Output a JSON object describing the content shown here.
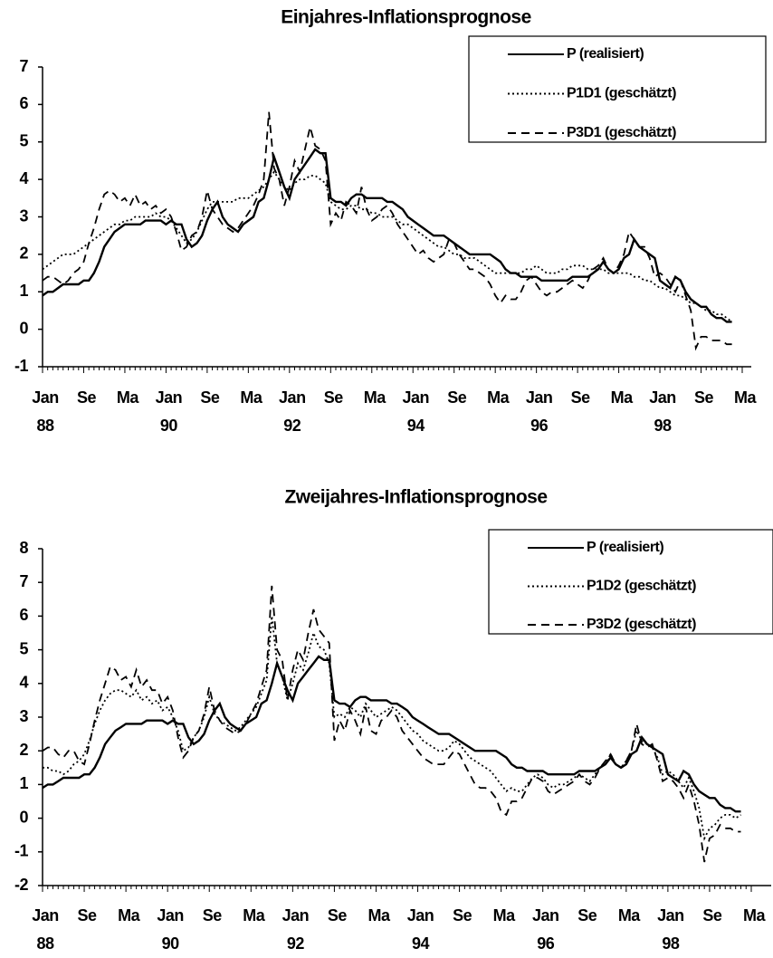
{
  "chart_data": [
    {
      "type": "line",
      "title": "Einjahres-Inflationsprognose",
      "categories": [
        "Jan 88",
        null,
        null,
        null,
        null,
        null,
        null,
        null,
        "Se",
        null,
        null,
        null,
        null,
        null,
        null,
        null,
        "Ma",
        null,
        null,
        null,
        null,
        null,
        null,
        null,
        "Jan 90",
        null,
        null,
        null,
        null,
        null,
        null,
        null,
        "Se",
        null,
        null,
        null,
        null,
        null,
        null,
        null,
        "Ma",
        null,
        null,
        null,
        null,
        null,
        null,
        null,
        "Jan 92",
        null,
        null,
        null,
        null,
        null,
        null,
        null,
        "Se",
        null,
        null,
        null,
        null,
        null,
        null,
        null,
        "Ma",
        null,
        null,
        null,
        null,
        null,
        null,
        null,
        "Jan 94",
        null,
        null,
        null,
        null,
        null,
        null,
        null,
        "Se",
        null,
        null,
        null,
        null,
        null,
        null,
        null,
        "Ma",
        null,
        null,
        null,
        null,
        null,
        null,
        null,
        "Jan 96",
        null,
        null,
        null,
        null,
        null,
        null,
        null,
        "Se",
        null,
        null,
        null,
        null,
        null,
        null,
        null,
        "Ma",
        null,
        null,
        null,
        null,
        null,
        null,
        null,
        "Jan 98",
        null,
        null,
        null,
        null,
        null,
        null,
        null,
        "Se",
        null,
        null,
        null,
        null,
        null,
        null,
        null,
        "Ma"
      ],
      "ylim": [
        -1,
        7
      ],
      "yticks": [
        -1,
        0,
        1,
        2,
        3,
        4,
        5,
        6,
        7
      ],
      "legend": "top-right",
      "series": [
        {
          "name": "P (realisiert)",
          "color": "#000000",
          "style": "solid",
          "values": [
            0.9,
            1.0,
            1.0,
            1.1,
            1.2,
            1.2,
            1.2,
            1.2,
            1.3,
            1.3,
            1.5,
            1.8,
            2.2,
            2.4,
            2.6,
            2.7,
            2.8,
            2.8,
            2.8,
            2.8,
            2.9,
            2.9,
            2.9,
            2.9,
            2.8,
            2.9,
            2.8,
            2.8,
            2.4,
            2.2,
            2.3,
            2.5,
            2.9,
            3.2,
            3.4,
            3.0,
            2.8,
            2.7,
            2.6,
            2.8,
            2.9,
            3.0,
            3.4,
            3.5,
            4.0,
            4.6,
            4.2,
            3.8,
            3.5,
            4.0,
            4.2,
            4.4,
            4.6,
            4.8,
            4.7,
            4.7,
            3.5,
            3.4,
            3.4,
            3.3,
            3.5,
            3.6,
            3.6,
            3.5,
            3.5,
            3.5,
            3.5,
            3.4,
            3.4,
            3.3,
            3.2,
            3.0,
            2.9,
            2.8,
            2.7,
            2.6,
            2.5,
            2.5,
            2.5,
            2.4,
            2.3,
            2.2,
            2.1,
            2.0,
            2.0,
            2.0,
            2.0,
            2.0,
            1.9,
            1.8,
            1.6,
            1.5,
            1.5,
            1.4,
            1.4,
            1.4,
            1.4,
            1.3,
            1.3,
            1.3,
            1.3,
            1.3,
            1.3,
            1.4,
            1.4,
            1.4,
            1.4,
            1.5,
            1.6,
            1.8,
            1.6,
            1.5,
            1.6,
            1.9,
            2.0,
            2.4,
            2.2,
            2.1,
            2.0,
            1.9,
            1.3,
            1.2,
            1.1,
            1.4,
            1.3,
            1.0,
            0.8,
            0.7,
            0.6,
            0.6,
            0.4,
            0.3,
            0.3,
            0.2,
            0.2,
            null,
            null
          ]
        },
        {
          "name": "P1D1 (geschätzt)",
          "color": "#000000",
          "style": "dotted",
          "values": [
            1.6,
            1.7,
            1.8,
            1.9,
            2.0,
            2.0,
            2.0,
            2.1,
            2.2,
            2.3,
            2.4,
            2.5,
            2.6,
            2.7,
            2.8,
            2.8,
            2.9,
            2.9,
            3.0,
            3.0,
            3.0,
            3.0,
            3.1,
            3.0,
            3.0,
            2.9,
            2.7,
            2.5,
            2.3,
            2.4,
            2.6,
            2.9,
            3.2,
            3.4,
            3.4,
            3.4,
            3.4,
            3.4,
            3.5,
            3.5,
            3.5,
            3.6,
            3.7,
            3.8,
            4.0,
            4.2,
            4.0,
            3.8,
            3.7,
            3.9,
            4.0,
            4.0,
            4.1,
            4.1,
            4.0,
            3.9,
            3.4,
            3.3,
            3.2,
            3.2,
            3.3,
            3.3,
            3.2,
            3.2,
            3.1,
            3.1,
            3.0,
            3.0,
            3.0,
            2.9,
            2.8,
            2.8,
            2.7,
            2.6,
            2.5,
            2.4,
            2.3,
            2.2,
            2.2,
            2.1,
            2.0,
            2.0,
            1.9,
            1.9,
            1.9,
            1.8,
            1.7,
            1.6,
            1.5,
            1.5,
            1.5,
            1.5,
            1.5,
            1.5,
            1.6,
            1.6,
            1.7,
            1.6,
            1.5,
            1.5,
            1.5,
            1.6,
            1.6,
            1.7,
            1.7,
            1.7,
            1.6,
            1.6,
            1.6,
            1.6,
            1.5,
            1.5,
            1.5,
            1.5,
            1.5,
            1.4,
            1.4,
            1.3,
            1.3,
            1.2,
            1.1,
            1.1,
            1.0,
            0.9,
            0.9,
            0.8,
            0.7,
            0.7,
            0.6,
            0.5,
            0.5,
            0.4,
            0.4,
            0.3,
            0.2,
            null,
            null
          ]
        },
        {
          "name": "P3D1 (geschätzt)",
          "color": "#000000",
          "style": "dashed",
          "values": [
            1.3,
            1.4,
            1.4,
            1.3,
            1.2,
            1.3,
            1.5,
            1.6,
            1.8,
            2.3,
            2.7,
            3.2,
            3.6,
            3.7,
            3.6,
            3.4,
            3.5,
            3.3,
            3.6,
            3.3,
            3.4,
            3.2,
            3.3,
            3.1,
            3.2,
            3.0,
            2.6,
            2.1,
            2.2,
            2.5,
            2.6,
            3.0,
            3.7,
            3.2,
            3.0,
            2.8,
            2.7,
            2.6,
            2.7,
            2.9,
            3.1,
            3.3,
            3.6,
            4.0,
            5.8,
            4.3,
            4.0,
            3.3,
            3.8,
            4.5,
            4.2,
            4.8,
            5.4,
            4.9,
            4.8,
            4.5,
            2.8,
            3.1,
            2.9,
            3.4,
            3.3,
            3.1,
            3.8,
            3.2,
            2.9,
            3.0,
            3.2,
            3.3,
            3.1,
            2.8,
            2.6,
            2.4,
            2.2,
            2.0,
            2.1,
            1.9,
            1.8,
            1.9,
            2.0,
            2.4,
            2.3,
            2.0,
            1.8,
            1.6,
            1.6,
            1.5,
            1.4,
            1.2,
            0.9,
            0.7,
            0.9,
            0.8,
            0.8,
            1.0,
            1.3,
            1.4,
            1.2,
            1.0,
            0.9,
            1.0,
            1.0,
            1.1,
            1.2,
            1.3,
            1.2,
            1.1,
            1.3,
            1.6,
            1.7,
            1.9,
            1.6,
            1.5,
            1.7,
            2.0,
            2.6,
            2.4,
            2.2,
            2.2,
            1.9,
            1.4,
            1.5,
            1.4,
            1.2,
            1.0,
            1.3,
            0.9,
            0.5,
            -0.5,
            -0.2,
            -0.2,
            -0.3,
            -0.3,
            -0.3,
            -0.4,
            -0.4,
            null,
            null
          ]
        }
      ]
    },
    {
      "type": "line",
      "title": "Zweijahres-Inflationsprognose",
      "categories": [
        "Jan 88",
        null,
        null,
        null,
        null,
        null,
        null,
        null,
        "Se",
        null,
        null,
        null,
        null,
        null,
        null,
        null,
        "Ma",
        null,
        null,
        null,
        null,
        null,
        null,
        null,
        "Jan 90",
        null,
        null,
        null,
        null,
        null,
        null,
        null,
        "Se",
        null,
        null,
        null,
        null,
        null,
        null,
        null,
        "Ma",
        null,
        null,
        null,
        null,
        null,
        null,
        null,
        "Jan 92",
        null,
        null,
        null,
        null,
        null,
        null,
        null,
        "Se",
        null,
        null,
        null,
        null,
        null,
        null,
        null,
        "Ma",
        null,
        null,
        null,
        null,
        null,
        null,
        null,
        "Jan 94",
        null,
        null,
        null,
        null,
        null,
        null,
        null,
        "Se",
        null,
        null,
        null,
        null,
        null,
        null,
        null,
        "Ma",
        null,
        null,
        null,
        null,
        null,
        null,
        null,
        "Jan 96",
        null,
        null,
        null,
        null,
        null,
        null,
        null,
        "Se",
        null,
        null,
        null,
        null,
        null,
        null,
        null,
        "Ma",
        null,
        null,
        null,
        null,
        null,
        null,
        null,
        "Jan 98",
        null,
        null,
        null,
        null,
        null,
        null,
        null,
        "Se",
        null,
        null,
        null,
        null,
        null,
        null,
        null,
        "Ma"
      ],
      "ylim": [
        -2,
        8
      ],
      "yticks": [
        -2,
        -1,
        0,
        1,
        2,
        3,
        4,
        5,
        6,
        7,
        8
      ],
      "legend": "top-right",
      "series": [
        {
          "name": "P (realisiert)",
          "color": "#000000",
          "style": "solid",
          "values": [
            0.9,
            1.0,
            1.0,
            1.1,
            1.2,
            1.2,
            1.2,
            1.2,
            1.3,
            1.3,
            1.5,
            1.8,
            2.2,
            2.4,
            2.6,
            2.7,
            2.8,
            2.8,
            2.8,
            2.8,
            2.9,
            2.9,
            2.9,
            2.9,
            2.8,
            2.9,
            2.8,
            2.8,
            2.4,
            2.2,
            2.3,
            2.5,
            2.9,
            3.2,
            3.4,
            3.0,
            2.8,
            2.7,
            2.6,
            2.8,
            2.9,
            3.0,
            3.4,
            3.5,
            4.0,
            4.6,
            4.2,
            3.8,
            3.5,
            4.0,
            4.2,
            4.4,
            4.6,
            4.8,
            4.7,
            4.7,
            3.5,
            3.4,
            3.4,
            3.3,
            3.5,
            3.6,
            3.6,
            3.5,
            3.5,
            3.5,
            3.5,
            3.4,
            3.4,
            3.3,
            3.2,
            3.0,
            2.9,
            2.8,
            2.7,
            2.6,
            2.5,
            2.5,
            2.5,
            2.4,
            2.3,
            2.2,
            2.1,
            2.0,
            2.0,
            2.0,
            2.0,
            2.0,
            1.9,
            1.8,
            1.6,
            1.5,
            1.5,
            1.4,
            1.4,
            1.4,
            1.4,
            1.3,
            1.3,
            1.3,
            1.3,
            1.3,
            1.3,
            1.4,
            1.4,
            1.4,
            1.4,
            1.5,
            1.6,
            1.8,
            1.6,
            1.5,
            1.6,
            1.9,
            2.0,
            2.4,
            2.2,
            2.1,
            2.0,
            1.9,
            1.3,
            1.2,
            1.1,
            1.4,
            1.3,
            1.0,
            0.8,
            0.7,
            0.6,
            0.6,
            0.4,
            0.3,
            0.3,
            0.2,
            0.2,
            null,
            null
          ]
        },
        {
          "name": "P1D2 (geschätzt)",
          "color": "#000000",
          "style": "dotted",
          "values": [
            1.5,
            1.5,
            1.4,
            1.4,
            1.3,
            1.4,
            1.6,
            1.7,
            1.9,
            2.3,
            2.8,
            3.2,
            3.5,
            3.7,
            3.8,
            3.8,
            3.7,
            3.6,
            3.8,
            3.5,
            3.6,
            3.4,
            3.5,
            3.2,
            3.3,
            3.0,
            2.6,
            2.0,
            2.1,
            2.4,
            2.6,
            3.0,
            3.6,
            3.1,
            2.9,
            2.8,
            2.7,
            2.6,
            2.7,
            2.9,
            3.1,
            3.3,
            3.7,
            4.1,
            6.0,
            4.6,
            4.2,
            3.5,
            4.0,
            4.6,
            4.4,
            4.9,
            5.5,
            5.1,
            5.0,
            4.6,
            3.0,
            3.1,
            3.0,
            3.3,
            3.2,
            3.0,
            3.4,
            3.2,
            3.0,
            3.1,
            3.2,
            3.3,
            3.2,
            3.0,
            2.8,
            2.6,
            2.5,
            2.3,
            2.2,
            2.1,
            2.0,
            2.0,
            2.1,
            2.3,
            2.2,
            2.0,
            1.8,
            1.7,
            1.6,
            1.5,
            1.4,
            1.2,
            1.0,
            0.8,
            0.9,
            0.8,
            0.8,
            1.0,
            1.2,
            1.3,
            1.2,
            1.0,
            0.9,
            1.0,
            1.0,
            1.1,
            1.2,
            1.3,
            1.2,
            1.1,
            1.3,
            1.5,
            1.6,
            1.9,
            1.6,
            1.5,
            1.7,
            2.0,
            2.6,
            2.3,
            2.2,
            2.1,
            1.8,
            1.3,
            1.4,
            1.3,
            1.1,
            0.9,
            1.2,
            0.8,
            0.3,
            -0.6,
            -0.3,
            -0.2,
            0.0,
            0.1,
            0.1,
            0.0,
            0.1,
            null,
            null
          ]
        },
        {
          "name": "P3D2 (geschätzt)",
          "color": "#000000",
          "style": "dashed",
          "values": [
            2.0,
            2.1,
            2.1,
            1.9,
            1.8,
            2.0,
            2.0,
            1.7,
            1.6,
            2.2,
            2.9,
            3.5,
            4.0,
            4.5,
            4.4,
            4.1,
            4.2,
            3.9,
            4.4,
            3.9,
            4.1,
            3.8,
            3.8,
            3.4,
            3.6,
            3.2,
            2.4,
            1.8,
            2.0,
            2.4,
            2.6,
            3.1,
            3.9,
            3.2,
            2.9,
            2.7,
            2.6,
            2.5,
            2.6,
            2.8,
            3.1,
            3.4,
            3.9,
            4.4,
            6.9,
            5.0,
            4.7,
            3.5,
            4.4,
            5.0,
            4.7,
            5.5,
            6.2,
            5.6,
            5.4,
            5.2,
            2.3,
            2.9,
            2.6,
            3.2,
            2.9,
            2.5,
            3.3,
            2.6,
            2.5,
            2.9,
            3.0,
            3.2,
            3.0,
            2.6,
            2.4,
            2.2,
            2.0,
            1.8,
            1.7,
            1.6,
            1.6,
            1.6,
            1.8,
            2.0,
            1.9,
            1.6,
            1.3,
            1.0,
            0.9,
            0.9,
            0.8,
            0.6,
            0.2,
            0.1,
            0.5,
            0.5,
            0.6,
            0.9,
            1.2,
            1.2,
            1.1,
            0.8,
            0.7,
            0.8,
            0.9,
            1.0,
            1.1,
            1.3,
            1.1,
            1.0,
            1.2,
            1.5,
            1.7,
            1.9,
            1.6,
            1.5,
            1.7,
            2.0,
            2.8,
            2.2,
            2.1,
            2.2,
            1.7,
            1.1,
            1.2,
            1.1,
            0.9,
            0.6,
            1.0,
            0.5,
            -0.2,
            -1.3,
            -0.6,
            -0.5,
            -0.2,
            -0.3,
            -0.3,
            -0.4,
            -0.4,
            null,
            null
          ]
        }
      ]
    }
  ]
}
